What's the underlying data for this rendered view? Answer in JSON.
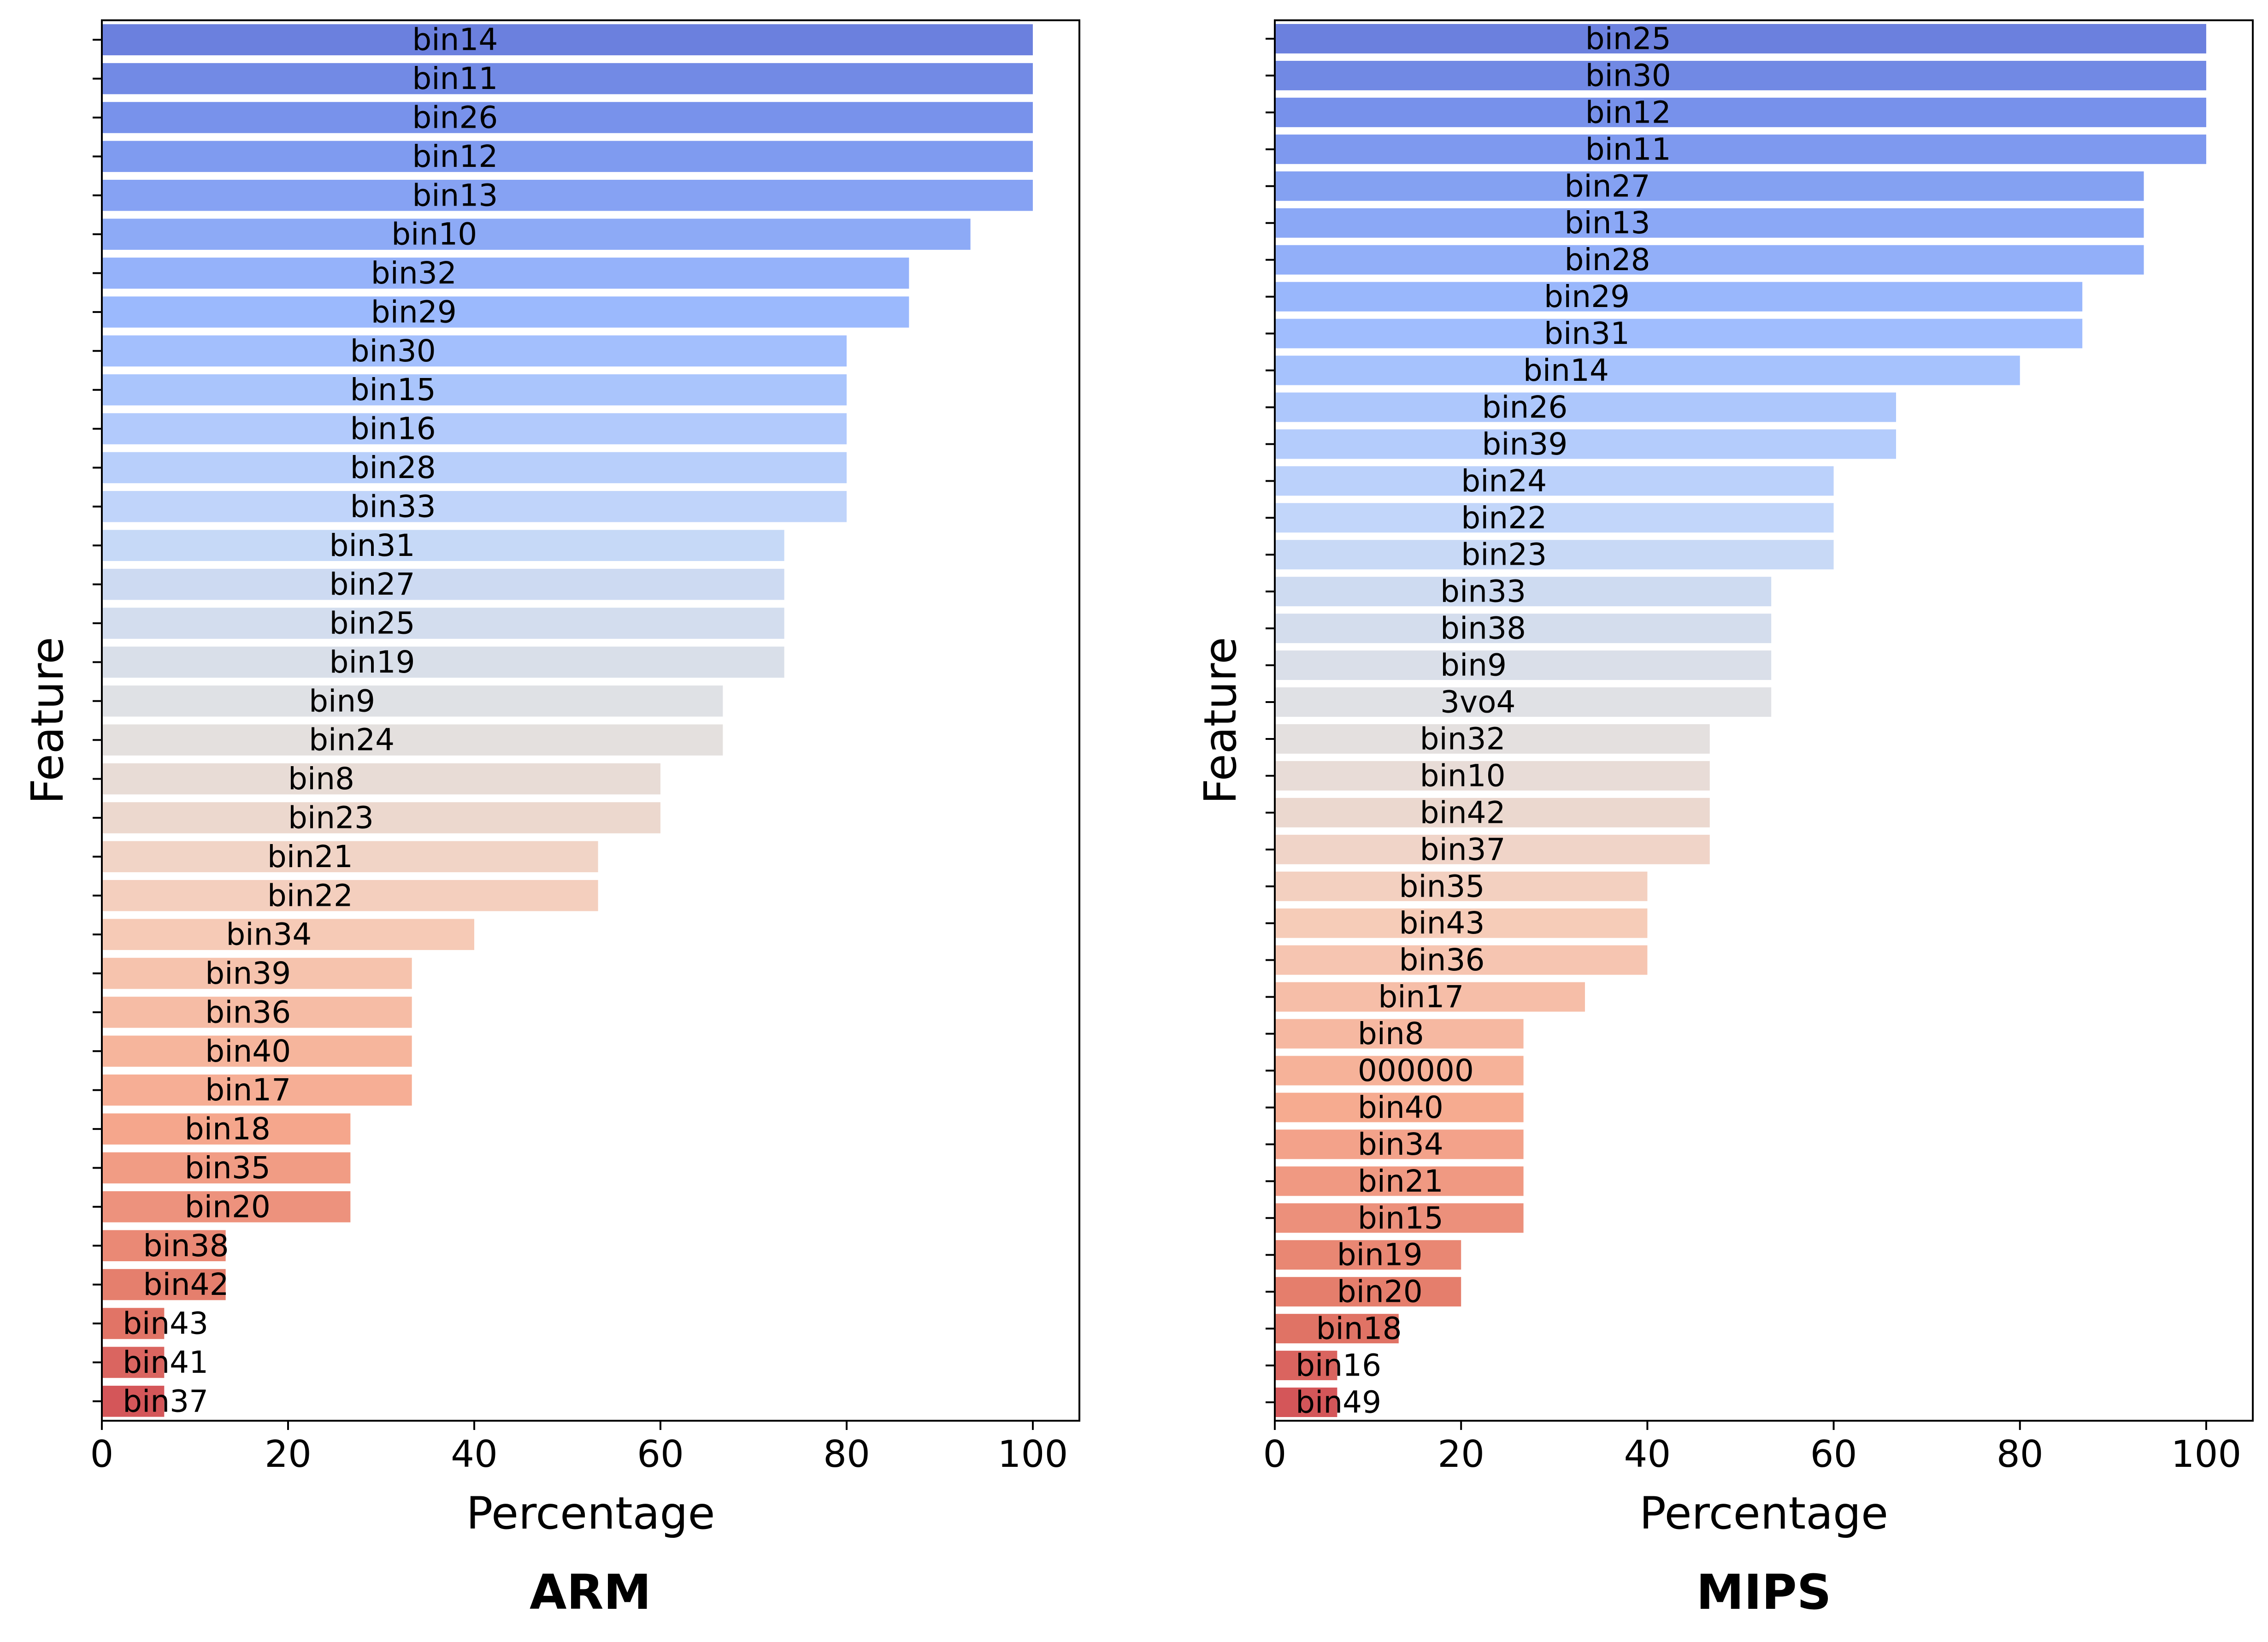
{
  "chart_data": [
    {
      "type": "bar",
      "orientation": "horizontal",
      "title": "ARM",
      "xlabel": "Percentage",
      "ylabel": "Feature",
      "xlim": [
        0,
        105
      ],
      "xticks": [
        "0",
        "20",
        "40",
        "60",
        "80",
        "100"
      ],
      "grid": false,
      "colormap": "coolwarm",
      "categories": [
        "bin14",
        "bin11",
        "bin26",
        "bin12",
        "bin13",
        "bin10",
        "bin32",
        "bin29",
        "bin30",
        "bin15",
        "bin16",
        "bin28",
        "bin33",
        "bin31",
        "bin27",
        "bin25",
        "bin19",
        "bin9",
        "bin24",
        "bin8",
        "bin23",
        "bin21",
        "bin22",
        "bin34",
        "bin39",
        "bin36",
        "bin40",
        "bin17",
        "bin18",
        "bin35",
        "bin20",
        "bin38",
        "bin42",
        "bin43",
        "bin41",
        "bin37"
      ],
      "values": [
        100,
        100,
        100,
        100,
        100,
        93.3,
        86.7,
        86.7,
        80,
        80,
        80,
        80,
        80,
        73.3,
        73.3,
        73.3,
        73.3,
        66.7,
        66.7,
        60,
        60,
        53.3,
        53.3,
        40,
        33.3,
        33.3,
        33.3,
        33.3,
        26.7,
        26.7,
        26.7,
        13.3,
        13.3,
        6.7,
        6.7,
        6.7
      ]
    },
    {
      "type": "bar",
      "orientation": "horizontal",
      "title": "MIPS",
      "xlabel": "Percentage",
      "ylabel": "Feature",
      "xlim": [
        0,
        105
      ],
      "xticks": [
        "0",
        "20",
        "40",
        "60",
        "80",
        "100"
      ],
      "grid": false,
      "colormap": "coolwarm",
      "categories": [
        "bin25",
        "bin30",
        "bin12",
        "bin11",
        "bin27",
        "bin13",
        "bin28",
        "bin29",
        "bin31",
        "bin14",
        "bin26",
        "bin39",
        "bin24",
        "bin22",
        "bin23",
        "bin33",
        "bin38",
        "bin9",
        "3vo4",
        "bin32",
        "bin10",
        "bin42",
        "bin37",
        "bin35",
        "bin43",
        "bin36",
        "bin17",
        "bin8",
        "000000",
        "bin40",
        "bin34",
        "bin21",
        "bin15",
        "bin19",
        "bin20",
        "bin18",
        "bin16",
        "bin49"
      ],
      "values": [
        100,
        100,
        100,
        100,
        93.3,
        93.3,
        93.3,
        86.7,
        86.7,
        80,
        66.7,
        66.7,
        60,
        60,
        60,
        53.3,
        53.3,
        53.3,
        53.3,
        46.7,
        46.7,
        46.7,
        46.7,
        40,
        40,
        40,
        33.3,
        26.7,
        26.7,
        26.7,
        26.7,
        26.7,
        26.7,
        20,
        20,
        13.3,
        6.7,
        6.7
      ]
    }
  ]
}
